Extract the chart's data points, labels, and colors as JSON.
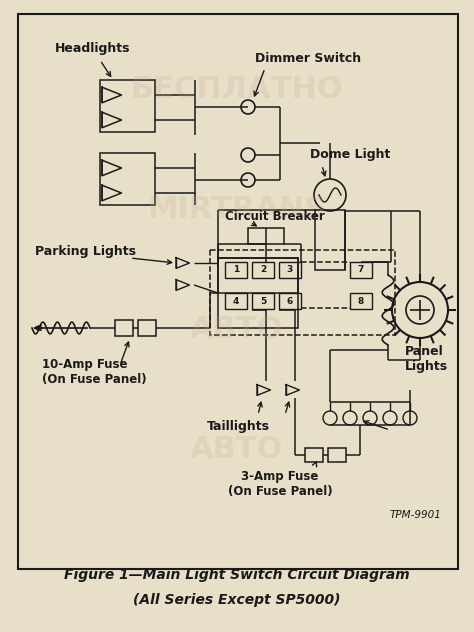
{
  "bg_color": "#e8dfc8",
  "line_color": "#1a1a1a",
  "title": "Figure 1—Main Light Switch Circuit Diagram",
  "subtitle": "(All Series Except SP5000)",
  "tpm_label": "TPM-9901",
  "watermarks": [
    "БЕСПЛАТНО",
    "MIRTRANS",
    "АВТО"
  ],
  "labels": {
    "headlights": "Headlights",
    "dimmer_switch": "Dimmer Switch",
    "dome_light": "Dome Light",
    "circuit_breaker": "Circuit Breaker",
    "parking_lights": "Parking Lights",
    "panel_lights": "Panel\nLights",
    "taillights": "Taillights",
    "ten_amp": "10-Amp Fuse\n(On Fuse Panel)",
    "three_amp": "3-Amp Fuse\n(On Fuse Panel)"
  },
  "fig_width": 4.74,
  "fig_height": 6.32,
  "dpi": 100
}
